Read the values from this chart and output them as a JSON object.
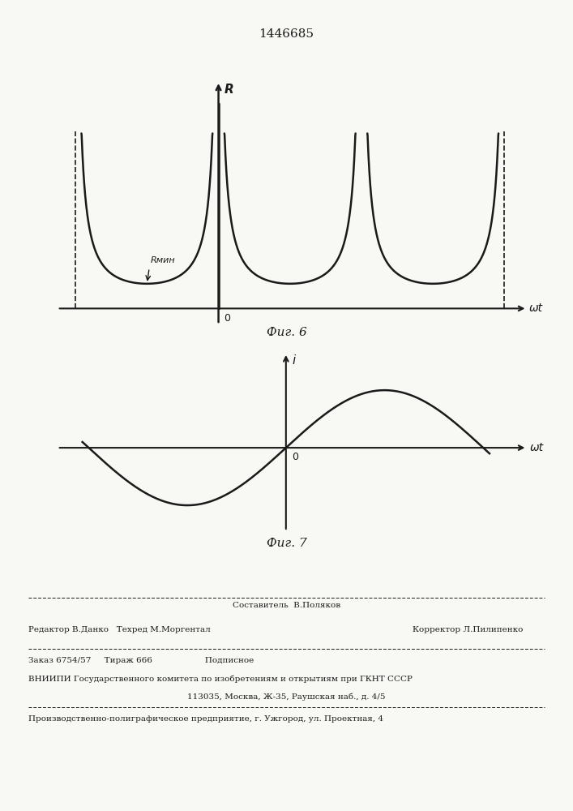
{
  "patent_number": "1446685",
  "fig6_title": "Фиг. 6",
  "fig7_title": "Фиг. 7",
  "fig6_ylabel": "R",
  "fig6_xlabel": "ωt",
  "fig7_ylabel": "i",
  "fig7_xlabel": "ωt",
  "fig6_rmin_label": "Rмин",
  "fig7_zero_label": "0",
  "fig6_zero_label": "0",
  "bg_color": "#f8f8f5",
  "line_color": "#1a1a1a",
  "footer_line1_center": "Составитель  В.Поляков",
  "footer_line2_left": "Редактор В.Данко   Техред М.Моргентал",
  "footer_line2_right": "Корректор Л.Пилипенко",
  "footer_line3": "Заказ 6754/57     Тираж 666                    Подписное",
  "footer_line4": "ВНИИПИ Государственного комитета по изобретениям и открытиям при ГКНТ СССР",
  "footer_line5": "113035, Москва, Ж-35, Раушская наб., д. 4/5",
  "footer_line6": "Производственно-полиграфическое предприятие, г. Ужгород, ул. Проектная, 4"
}
